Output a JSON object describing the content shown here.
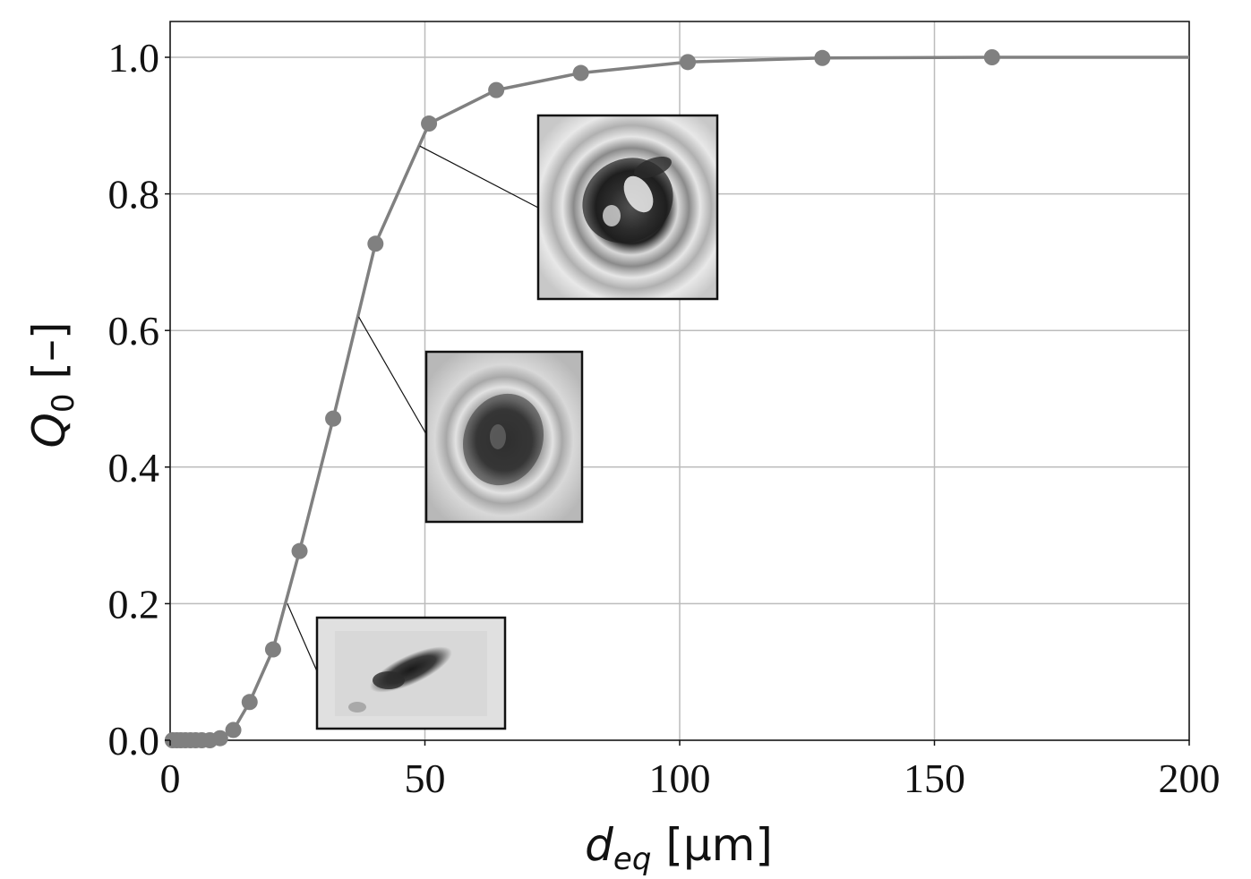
{
  "chart_data": {
    "type": "line",
    "xlabel": "d",
    "xlabel_sub": "eq",
    "xlabel_unit": "[μm]",
    "ylabel": "Q",
    "ylabel_sub": "0",
    "ylabel_unit": "[–]",
    "xlim": [
      0,
      200
    ],
    "ylim": [
      0.0,
      1.05
    ],
    "xticks": [
      0,
      50,
      100,
      150,
      200
    ],
    "xtick_labels": [
      "0",
      "50",
      "100",
      "150",
      "200"
    ],
    "yticks": [
      0.0,
      0.2,
      0.4,
      0.6,
      0.8,
      1.0
    ],
    "ytick_labels": [
      "0.0",
      "0.2",
      "0.4",
      "0.6",
      "0.8",
      "1.0"
    ],
    "grid": true,
    "series": [
      {
        "color": "#808080",
        "x": [
          0.5,
          1.3,
          2.1,
          3.0,
          4.0,
          5.0,
          6.2,
          7.8,
          9.8,
          12.4,
          15.6,
          20.2,
          25.4,
          32.0,
          40.3,
          50.8,
          64.0,
          80.6,
          101.6,
          128.0,
          161.3
        ],
        "y": [
          0.0,
          0.0,
          0.0,
          0.0,
          0.0,
          0.0,
          0.0,
          0.0,
          0.003,
          0.015,
          0.056,
          0.133,
          0.277,
          0.471,
          0.727,
          0.903,
          0.952,
          0.977,
          0.993,
          0.999,
          1.0
        ],
        "extends_to_x": 200
      }
    ],
    "insets": [
      {
        "name": "particle-image-small",
        "points_to": [
          23,
          0.2
        ]
      },
      {
        "name": "particle-image-medium",
        "points_to": [
          37,
          0.62
        ]
      },
      {
        "name": "particle-image-large",
        "points_to": [
          49,
          0.87
        ]
      }
    ]
  }
}
